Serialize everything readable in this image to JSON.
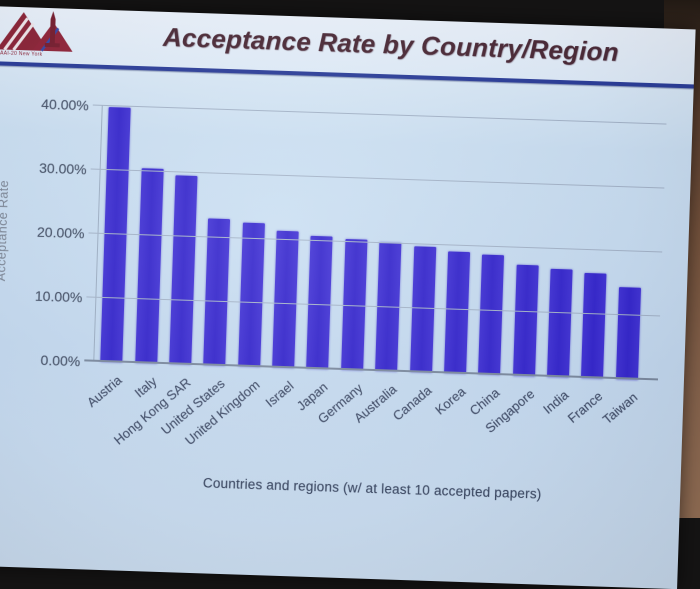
{
  "slide": {
    "title": "Acceptance Rate by Country/Region",
    "logo": {
      "label": "AAAI-20 New York"
    },
    "caption": "Countries and regions (w/ at least 10 accepted papers)"
  },
  "chart_data": {
    "type": "bar",
    "title": "Acceptance Rate by Country/Region",
    "xlabel": "Countries and regions (w/ at least 10 accepted papers)",
    "ylabel": "Acceptance Rate",
    "ylim": [
      0,
      40
    ],
    "ytick_labels": [
      "0.00%",
      "10.00%",
      "20.00%",
      "30.00%",
      "40.00%"
    ],
    "grid": true,
    "legend": false,
    "bar_color": "#3b2dd1",
    "categories": [
      "Austria",
      "Italy",
      "Hong Kong SAR",
      "United States",
      "United Kingdom",
      "Israel",
      "Japan",
      "Germany",
      "Australia",
      "Canada",
      "Korea",
      "China",
      "Singapore",
      "India",
      "France",
      "Taiwan"
    ],
    "values": [
      39.9,
      30.5,
      29.6,
      22.9,
      22.5,
      21.4,
      20.8,
      20.5,
      20.2,
      19.7,
      19.0,
      18.7,
      17.4,
      16.9,
      16.4,
      14.3
    ]
  },
  "colors": {
    "slide_background": "#cde1f3",
    "header_background": "#e9f1fb",
    "bar": "#3b2dd1",
    "title_text": "#4c2a36",
    "divider": "#2c3e99",
    "gridline": "#a6b5c9",
    "axis_text": "#49556a",
    "wall": "#74523c"
  }
}
